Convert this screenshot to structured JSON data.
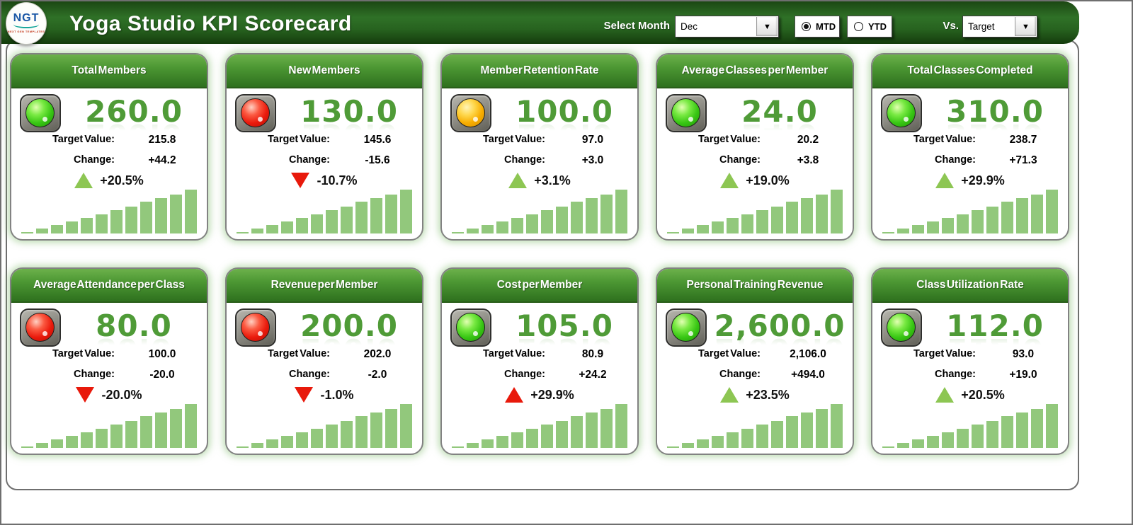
{
  "header": {
    "logo": {
      "text": "NGT",
      "caption": "NEXT GEN TEMPLATES"
    },
    "title": "Yoga Studio KPI Scorecard",
    "select_month_label": "Select Month",
    "month_dropdown": {
      "value": "Dec",
      "arrow_icon": "▼"
    },
    "period_options": [
      {
        "label": "MTD",
        "selected": true
      },
      {
        "label": "YTD",
        "selected": false
      }
    ],
    "vs_label": "Vs.",
    "vs_dropdown": {
      "value": "Target",
      "arrow_icon": "▼"
    }
  },
  "labels": {
    "target": "Target Value:",
    "change": "Change:"
  },
  "colors": {
    "header_green_dark": "#1c4713",
    "header_green_mid": "#2f7127",
    "card_header_green_top": "#6cb14b",
    "card_header_green_bottom": "#2e701e",
    "big_number_green": "#4f9b37",
    "bar_green": "#92c87c",
    "up_triangle_green": "#8dc653",
    "down_triangle_red": "#e8190b",
    "light_green": "#38c614",
    "light_red": "#ea1a0c",
    "light_amber": "#f7ad00",
    "card_glow": "rgba(130,190,110,0.5)"
  },
  "cards": [
    {
      "title": "Total Members",
      "status_light": "green",
      "value": "260.0",
      "target": "215.8",
      "change": "+44.2",
      "delta_pct": "+20.5%",
      "delta_dir": "up",
      "delta_color": "green"
    },
    {
      "title": "New Members",
      "status_light": "red",
      "value": "130.0",
      "target": "145.6",
      "change": "-15.6",
      "delta_pct": "-10.7%",
      "delta_dir": "down",
      "delta_color": "red"
    },
    {
      "title": "Member Retention Rate",
      "status_light": "amber",
      "value": "100.0",
      "target": "97.0",
      "change": "+3.0",
      "delta_pct": "+3.1%",
      "delta_dir": "up",
      "delta_color": "green"
    },
    {
      "title": "Average Classes per Member",
      "status_light": "green",
      "value": "24.0",
      "target": "20.2",
      "change": "+3.8",
      "delta_pct": "+19.0%",
      "delta_dir": "up",
      "delta_color": "green"
    },
    {
      "title": "Total Classes Completed",
      "status_light": "green",
      "value": "310.0",
      "target": "238.7",
      "change": "+71.3",
      "delta_pct": "+29.9%",
      "delta_dir": "up",
      "delta_color": "green"
    },
    {
      "title": "Average Attendance per Class",
      "status_light": "red",
      "value": "80.0",
      "target": "100.0",
      "change": "-20.0",
      "delta_pct": "-20.0%",
      "delta_dir": "down",
      "delta_color": "red"
    },
    {
      "title": "Revenue per Member",
      "status_light": "red",
      "value": "200.0",
      "target": "202.0",
      "change": "-2.0",
      "delta_pct": "-1.0%",
      "delta_dir": "down",
      "delta_color": "red"
    },
    {
      "title": "Cost per Member",
      "status_light": "green",
      "value": "105.0",
      "target": "80.9",
      "change": "+24.2",
      "delta_pct": "+29.9%",
      "delta_dir": "up",
      "delta_color": "red"
    },
    {
      "title": "Personal Training Revenue",
      "status_light": "green",
      "value": "2,600.0",
      "target": "2,106.0",
      "change": "+494.0",
      "delta_pct": "+23.5%",
      "delta_dir": "up",
      "delta_color": "green"
    },
    {
      "title": "Class Utilization Rate",
      "status_light": "green",
      "value": "112.0",
      "target": "93.0",
      "change": "+19.0",
      "delta_pct": "+20.5%",
      "delta_dir": "up",
      "delta_color": "green"
    }
  ],
  "chart_data": [
    {
      "kpi": "Total Members",
      "type": "bar",
      "n_bars": 12,
      "axis_labels_visible": false,
      "trend": "ascending",
      "current_value": 260.0,
      "bar_heights_pct_of_max": [
        3,
        11,
        19,
        28,
        36,
        44,
        53,
        61,
        72,
        81,
        89,
        100
      ]
    },
    {
      "kpi": "New Members",
      "type": "bar",
      "n_bars": 12,
      "axis_labels_visible": false,
      "trend": "ascending",
      "current_value": 130.0,
      "bar_heights_pct_of_max": [
        3,
        11,
        19,
        28,
        36,
        44,
        53,
        61,
        72,
        81,
        89,
        100
      ]
    },
    {
      "kpi": "Member Retention Rate",
      "type": "bar",
      "n_bars": 12,
      "axis_labels_visible": false,
      "trend": "ascending",
      "current_value": 100.0,
      "bar_heights_pct_of_max": [
        3,
        11,
        19,
        28,
        36,
        44,
        53,
        61,
        72,
        81,
        89,
        100
      ]
    },
    {
      "kpi": "Average Classes per Member",
      "type": "bar",
      "n_bars": 12,
      "axis_labels_visible": false,
      "trend": "ascending",
      "current_value": 24.0,
      "bar_heights_pct_of_max": [
        3,
        11,
        19,
        28,
        36,
        44,
        53,
        61,
        72,
        81,
        89,
        100
      ]
    },
    {
      "kpi": "Total Classes Completed",
      "type": "bar",
      "n_bars": 12,
      "axis_labels_visible": false,
      "trend": "ascending",
      "current_value": 310.0,
      "bar_heights_pct_of_max": [
        3,
        11,
        19,
        28,
        36,
        44,
        53,
        61,
        72,
        81,
        89,
        100
      ]
    },
    {
      "kpi": "Average Attendance per Class",
      "type": "bar",
      "n_bars": 12,
      "axis_labels_visible": false,
      "trend": "ascending",
      "current_value": 80.0,
      "bar_heights_pct_of_max": [
        3,
        11,
        19,
        28,
        36,
        44,
        53,
        61,
        72,
        81,
        89,
        100
      ]
    },
    {
      "kpi": "Revenue per Member",
      "type": "bar",
      "n_bars": 12,
      "axis_labels_visible": false,
      "trend": "ascending",
      "current_value": 200.0,
      "bar_heights_pct_of_max": [
        3,
        11,
        19,
        28,
        36,
        44,
        53,
        61,
        72,
        81,
        89,
        100
      ]
    },
    {
      "kpi": "Cost per Member",
      "type": "bar",
      "n_bars": 12,
      "axis_labels_visible": false,
      "trend": "ascending",
      "current_value": 105.0,
      "bar_heights_pct_of_max": [
        3,
        11,
        19,
        28,
        36,
        44,
        53,
        61,
        72,
        81,
        89,
        100
      ]
    },
    {
      "kpi": "Personal Training Revenue",
      "type": "bar",
      "n_bars": 12,
      "axis_labels_visible": false,
      "trend": "ascending",
      "current_value": 2600.0,
      "bar_heights_pct_of_max": [
        3,
        11,
        19,
        28,
        36,
        44,
        53,
        61,
        72,
        81,
        89,
        100
      ]
    },
    {
      "kpi": "Class Utilization Rate",
      "type": "bar",
      "n_bars": 12,
      "axis_labels_visible": false,
      "trend": "ascending",
      "current_value": 112.0,
      "bar_heights_pct_of_max": [
        3,
        11,
        19,
        28,
        36,
        44,
        53,
        61,
        72,
        81,
        89,
        100
      ]
    }
  ]
}
